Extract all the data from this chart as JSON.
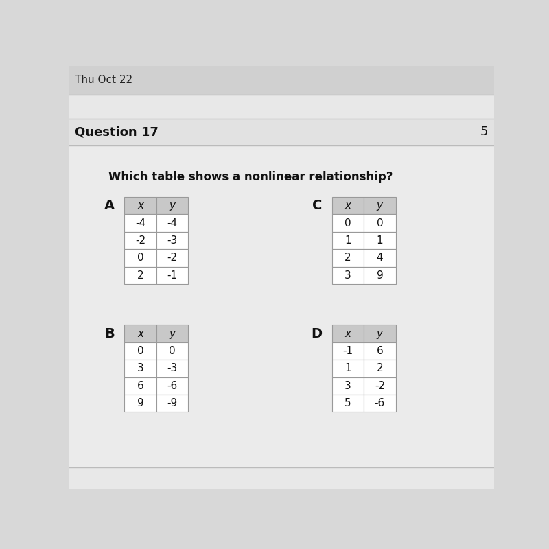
{
  "title": "Which table shows a nonlinear relationship?",
  "header_bg": "#c8c8c8",
  "cell_bg": "#ffffff",
  "border_color": "#aaaaaa",
  "question_17": "Question 17",
  "date_text": "Thu Oct 22",
  "num_text": "5",
  "tables": {
    "A": {
      "label": "A",
      "headers": [
        "x",
        "y"
      ],
      "rows": [
        [
          "-4",
          "-4"
        ],
        [
          "-2",
          "-3"
        ],
        [
          "0",
          "-2"
        ],
        [
          "2",
          "-1"
        ]
      ]
    },
    "B": {
      "label": "B",
      "headers": [
        "x",
        "y"
      ],
      "rows": [
        [
          "0",
          "0"
        ],
        [
          "3",
          "-3"
        ],
        [
          "6",
          "-6"
        ],
        [
          "9",
          "-9"
        ]
      ]
    },
    "C": {
      "label": "C",
      "headers": [
        "x",
        "y"
      ],
      "rows": [
        [
          "0",
          "0"
        ],
        [
          "1",
          "1"
        ],
        [
          "2",
          "4"
        ],
        [
          "3",
          "9"
        ]
      ]
    },
    "D": {
      "label": "D",
      "headers": [
        "x",
        "y"
      ],
      "rows": [
        [
          "-1",
          "6"
        ],
        [
          "1",
          "2"
        ],
        [
          "3",
          "-2"
        ],
        [
          "5",
          "-6"
        ]
      ]
    }
  },
  "bg_color": "#d8d8d8",
  "page_bg": "#e8e8e8",
  "top_bar_bg": "#d0d0d0",
  "question_bar_bg": "#e2e2e2",
  "content_bg": "#ebebeb",
  "bottom_bg": "#e8e8e8"
}
